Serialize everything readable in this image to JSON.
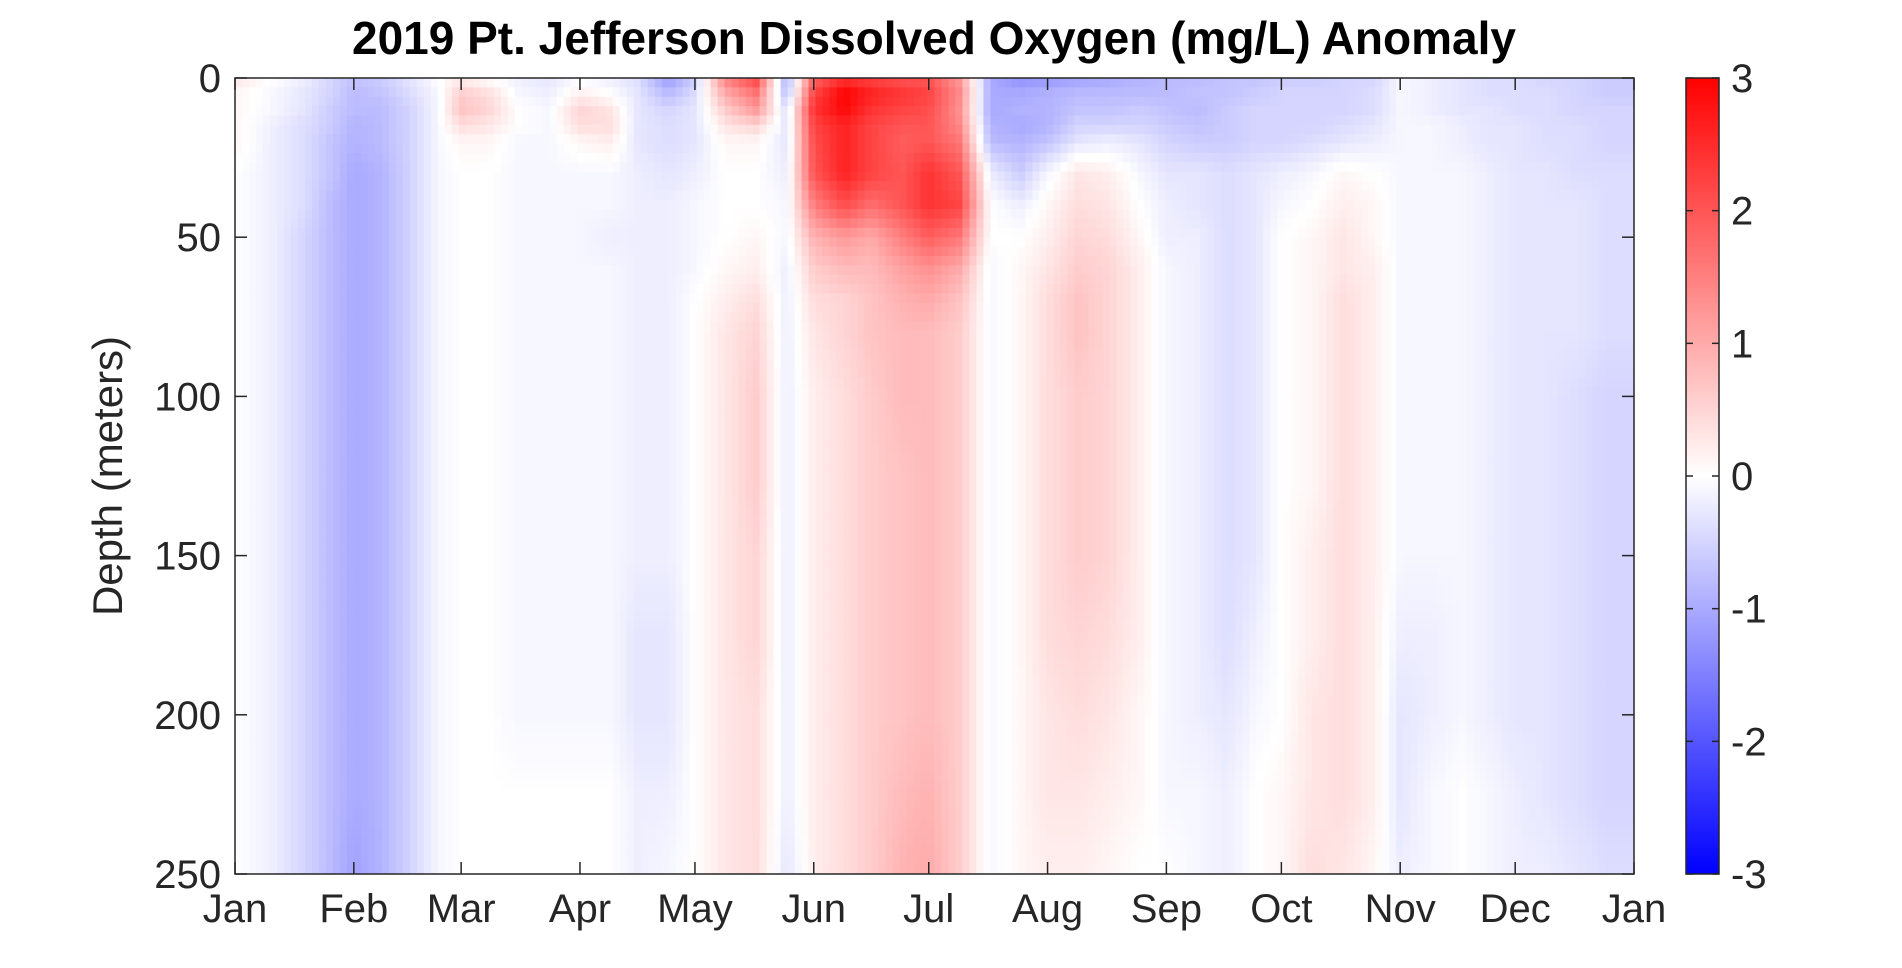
{
  "chart_data": {
    "type": "heatmap",
    "title": "2019 Pt. Jefferson Dissolved Oxygen (mg/L) Anomaly",
    "xlabel": "",
    "ylabel": "Depth (meters)",
    "x_ticks": [
      "Jan",
      "Feb",
      "Mar",
      "Apr",
      "May",
      "Jun",
      "Jul",
      "Aug",
      "Sep",
      "Oct",
      "Nov",
      "Dec",
      "Jan"
    ],
    "x_tick_days": [
      0,
      31,
      59,
      90,
      120,
      151,
      181,
      212,
      243,
      273,
      304,
      334,
      365
    ],
    "xlim": [
      0,
      365
    ],
    "y_ticks": [
      0,
      50,
      100,
      150,
      200,
      250
    ],
    "y_tick_labels": [
      "0",
      "50",
      "100",
      "150",
      "200",
      "250"
    ],
    "ylim": [
      0,
      250
    ],
    "y_reversed": true,
    "colorbar": {
      "ticks": [
        3,
        2,
        1,
        0,
        -1,
        -2,
        -3
      ],
      "tick_labels": [
        "3",
        "2",
        "1",
        "0",
        "-1",
        "-2",
        "-3"
      ],
      "range": [
        -3,
        3
      ],
      "colors": {
        "low": "#0000ff",
        "mid": "#ffffff",
        "high": "#ff0000"
      }
    },
    "time_days": [
      0,
      10,
      18,
      25,
      31,
      38,
      46,
      53,
      59,
      66,
      74,
      82,
      90,
      98,
      105,
      113,
      120,
      128,
      136,
      144,
      151,
      159,
      166,
      174,
      181,
      189,
      197,
      205,
      212,
      220,
      228,
      236,
      243,
      251,
      259,
      266,
      273,
      281,
      289,
      297,
      304,
      312,
      320,
      327,
      334,
      342,
      350,
      358,
      365
    ],
    "depths": [
      0,
      5,
      10,
      15,
      20,
      30,
      40,
      50,
      60,
      70,
      80,
      100,
      125,
      150,
      175,
      200,
      225,
      250
    ],
    "values": [
      [
        0.3,
        0.1,
        0.1,
        0.1,
        0.1,
        0.0,
        0.0,
        0.0,
        0.0,
        0.0,
        0.0,
        0.0,
        0.0,
        0.0,
        0.0,
        0.0,
        0.0,
        0.0
      ],
      [
        0.0,
        -0.1,
        -0.1,
        -0.2,
        -0.2,
        -0.2,
        -0.2,
        -0.2,
        -0.2,
        -0.2,
        -0.2,
        -0.2,
        -0.2,
        -0.2,
        -0.2,
        -0.2,
        -0.2,
        -0.2
      ],
      [
        -0.2,
        -0.3,
        -0.3,
        -0.4,
        -0.4,
        -0.4,
        -0.4,
        -0.5,
        -0.5,
        -0.5,
        -0.5,
        -0.5,
        -0.5,
        -0.5,
        -0.5,
        -0.5,
        -0.5,
        -0.5
      ],
      [
        -0.5,
        -0.5,
        -0.6,
        -0.6,
        -0.7,
        -0.7,
        -0.8,
        -0.8,
        -0.8,
        -0.8,
        -0.8,
        -0.8,
        -0.8,
        -0.8,
        -0.8,
        -0.8,
        -0.8,
        -0.8
      ],
      [
        -0.7,
        -0.8,
        -0.8,
        -0.9,
        -0.9,
        -1.0,
        -1.0,
        -1.0,
        -1.0,
        -1.0,
        -1.0,
        -1.0,
        -1.0,
        -1.0,
        -1.0,
        -1.0,
        -1.0,
        -1.1
      ],
      [
        -0.6,
        -0.7,
        -0.8,
        -0.8,
        -0.8,
        -0.9,
        -0.9,
        -0.9,
        -0.9,
        -0.9,
        -0.9,
        -0.9,
        -0.9,
        -0.9,
        -0.9,
        -0.9,
        -0.9,
        -0.9
      ],
      [
        -0.3,
        -0.4,
        -0.5,
        -0.5,
        -0.5,
        -0.5,
        -0.5,
        -0.5,
        -0.5,
        -0.5,
        -0.5,
        -0.5,
        -0.5,
        -0.5,
        -0.5,
        -0.5,
        -0.5,
        -0.5
      ],
      [
        0.0,
        -0.1,
        -0.1,
        -0.1,
        -0.1,
        -0.1,
        -0.1,
        -0.1,
        -0.1,
        -0.1,
        -0.1,
        -0.1,
        -0.1,
        -0.1,
        -0.1,
        -0.1,
        -0.1,
        -0.1
      ],
      [
        0.2,
        0.6,
        0.7,
        0.4,
        0.1,
        0.0,
        0.0,
        0.0,
        0.0,
        0.0,
        0.0,
        0.0,
        0.0,
        0.0,
        0.0,
        0.0,
        0.0,
        0.0
      ],
      [
        0.0,
        0.4,
        0.5,
        0.3,
        0.1,
        0.0,
        0.0,
        0.0,
        0.0,
        0.0,
        0.0,
        0.0,
        0.0,
        0.0,
        0.0,
        0.0,
        0.0,
        0.0
      ],
      [
        -0.2,
        -0.1,
        0.0,
        0.0,
        -0.1,
        -0.1,
        -0.1,
        -0.1,
        -0.1,
        -0.1,
        -0.1,
        -0.1,
        -0.1,
        -0.1,
        -0.1,
        -0.1,
        0.0,
        0.0
      ],
      [
        -0.3,
        -0.2,
        -0.1,
        -0.1,
        -0.1,
        -0.1,
        -0.1,
        -0.1,
        -0.1,
        -0.1,
        -0.1,
        -0.1,
        -0.1,
        -0.1,
        -0.1,
        -0.1,
        0.0,
        0.0
      ],
      [
        -0.1,
        0.2,
        0.5,
        0.4,
        0.1,
        -0.1,
        -0.1,
        -0.1,
        -0.1,
        -0.1,
        -0.1,
        -0.1,
        -0.1,
        -0.1,
        -0.1,
        -0.1,
        0.0,
        0.0
      ],
      [
        -0.2,
        0.0,
        0.3,
        0.4,
        0.2,
        -0.1,
        -0.1,
        -0.2,
        -0.1,
        -0.1,
        -0.1,
        -0.1,
        -0.1,
        -0.1,
        -0.1,
        -0.1,
        0.0,
        0.0
      ],
      [
        -0.4,
        -0.3,
        -0.3,
        -0.3,
        -0.3,
        -0.2,
        -0.2,
        -0.2,
        -0.2,
        -0.2,
        -0.2,
        -0.2,
        -0.2,
        -0.2,
        -0.3,
        -0.3,
        -0.2,
        -0.2
      ],
      [
        -1.2,
        -0.8,
        -0.5,
        -0.4,
        -0.4,
        -0.3,
        -0.2,
        -0.2,
        -0.2,
        -0.2,
        -0.2,
        -0.2,
        -0.2,
        -0.2,
        -0.3,
        -0.3,
        -0.2,
        -0.1
      ],
      [
        -0.6,
        -0.4,
        -0.3,
        -0.3,
        -0.3,
        -0.2,
        -0.1,
        -0.1,
        -0.1,
        0.0,
        0.0,
        0.0,
        0.0,
        0.0,
        0.0,
        0.0,
        0.0,
        0.0
      ],
      [
        1.5,
        1.0,
        0.6,
        0.3,
        0.1,
        0.0,
        0.0,
        0.0,
        0.1,
        0.2,
        0.3,
        0.3,
        0.3,
        0.3,
        0.3,
        0.3,
        0.3,
        0.3
      ],
      [
        2.2,
        1.6,
        1.2,
        0.5,
        0.1,
        0.0,
        0.0,
        0.1,
        0.2,
        0.4,
        0.5,
        0.6,
        0.6,
        0.5,
        0.5,
        0.4,
        0.4,
        0.4
      ],
      [
        -1.0,
        -0.8,
        -0.4,
        -0.3,
        -0.3,
        -0.2,
        -0.1,
        -0.1,
        -0.2,
        -0.2,
        -0.2,
        -0.2,
        -0.2,
        -0.2,
        -0.2,
        -0.2,
        -0.2,
        -0.3
      ],
      [
        1.8,
        2.2,
        2.4,
        2.2,
        2.1,
        2.0,
        1.5,
        0.9,
        0.6,
        0.4,
        0.3,
        0.2,
        0.2,
        0.2,
        0.2,
        0.2,
        0.2,
        0.2
      ],
      [
        2.4,
        3.0,
        2.9,
        2.6,
        2.6,
        2.6,
        2.1,
        1.2,
        0.8,
        0.5,
        0.5,
        0.4,
        0.4,
        0.4,
        0.4,
        0.4,
        0.4,
        0.4
      ],
      [
        2.2,
        2.6,
        2.4,
        2.2,
        2.2,
        2.2,
        1.7,
        1.0,
        0.8,
        0.7,
        0.7,
        0.6,
        0.6,
        0.6,
        0.6,
        0.6,
        0.6,
        0.6
      ],
      [
        2.0,
        2.4,
        2.2,
        2.0,
        1.9,
        2.0,
        2.0,
        1.5,
        1.1,
        0.9,
        0.8,
        0.8,
        0.7,
        0.7,
        0.7,
        0.7,
        0.8,
        0.9
      ],
      [
        2.0,
        2.2,
        2.1,
        2.0,
        2.0,
        2.4,
        2.4,
        1.9,
        1.3,
        1.0,
        0.8,
        0.8,
        0.8,
        0.8,
        0.8,
        0.8,
        0.9,
        1.0
      ],
      [
        1.2,
        1.4,
        1.3,
        1.4,
        1.6,
        2.0,
        2.2,
        1.6,
        1.0,
        0.7,
        0.6,
        0.6,
        0.6,
        0.6,
        0.6,
        0.6,
        0.6,
        0.6
      ],
      [
        -1.0,
        -1.0,
        -1.0,
        -0.9,
        -0.8,
        -0.2,
        0.0,
        0.0,
        -0.1,
        -0.1,
        -0.1,
        -0.1,
        -0.1,
        -0.1,
        -0.1,
        -0.1,
        -0.1,
        -0.1
      ],
      [
        -1.3,
        -1.0,
        -0.9,
        -1.0,
        -0.9,
        -0.6,
        -0.2,
        0.0,
        0.1,
        0.1,
        0.1,
        0.1,
        0.1,
        0.1,
        0.1,
        0.1,
        0.1,
        0.1
      ],
      [
        -1.2,
        -0.9,
        -0.9,
        -0.9,
        -0.7,
        -0.1,
        0.1,
        0.2,
        0.3,
        0.4,
        0.4,
        0.4,
        0.4,
        0.4,
        0.4,
        0.3,
        0.3,
        0.2
      ],
      [
        -1.1,
        -0.8,
        -0.7,
        -0.5,
        -0.3,
        0.3,
        0.4,
        0.5,
        0.6,
        0.7,
        0.7,
        0.6,
        0.6,
        0.6,
        0.5,
        0.4,
        0.3,
        0.2
      ],
      [
        -1.0,
        -0.8,
        -0.7,
        -0.5,
        -0.2,
        0.2,
        0.3,
        0.4,
        0.5,
        0.5,
        0.5,
        0.5,
        0.5,
        0.5,
        0.4,
        0.3,
        0.2,
        0.1
      ],
      [
        -0.9,
        -0.8,
        -0.6,
        -0.5,
        -0.3,
        -0.1,
        0.0,
        0.1,
        0.2,
        0.2,
        0.2,
        0.2,
        0.2,
        0.2,
        0.2,
        0.1,
        0.1,
        0.0
      ],
      [
        -0.8,
        -0.8,
        -0.7,
        -0.6,
        -0.5,
        -0.3,
        -0.2,
        -0.2,
        -0.1,
        -0.1,
        -0.1,
        -0.1,
        -0.1,
        -0.1,
        -0.1,
        -0.1,
        -0.1,
        0.0
      ],
      [
        -0.8,
        -0.7,
        -0.8,
        -0.7,
        -0.6,
        -0.3,
        -0.3,
        -0.2,
        -0.2,
        -0.2,
        -0.2,
        -0.2,
        -0.2,
        -0.2,
        -0.2,
        -0.2,
        -0.1,
        -0.1
      ],
      [
        -0.7,
        -0.7,
        -0.6,
        -0.6,
        -0.6,
        -0.4,
        -0.4,
        -0.4,
        -0.4,
        -0.4,
        -0.4,
        -0.4,
        -0.4,
        -0.4,
        -0.4,
        -0.3,
        -0.2,
        -0.2
      ],
      [
        -0.7,
        -0.6,
        -0.5,
        -0.5,
        -0.5,
        -0.3,
        -0.3,
        -0.3,
        -0.3,
        -0.3,
        -0.3,
        -0.3,
        -0.3,
        -0.3,
        -0.2,
        -0.1,
        0.0,
        0.0
      ],
      [
        -0.6,
        -0.5,
        -0.5,
        -0.5,
        -0.5,
        -0.2,
        -0.1,
        0.0,
        0.0,
        0.0,
        0.0,
        0.0,
        0.0,
        0.0,
        0.0,
        0.0,
        0.1,
        0.1
      ],
      [
        -0.6,
        -0.5,
        -0.5,
        -0.5,
        -0.4,
        -0.1,
        0.0,
        0.1,
        0.1,
        0.1,
        0.1,
        0.1,
        0.1,
        0.2,
        0.2,
        0.3,
        0.3,
        0.4
      ],
      [
        -0.5,
        -0.5,
        -0.5,
        -0.4,
        -0.3,
        0.1,
        0.2,
        0.3,
        0.3,
        0.4,
        0.4,
        0.4,
        0.4,
        0.4,
        0.4,
        0.4,
        0.4,
        0.3
      ],
      [
        -0.5,
        -0.4,
        -0.4,
        -0.3,
        -0.2,
        0.0,
        0.1,
        0.1,
        0.2,
        0.2,
        0.2,
        0.2,
        0.2,
        0.2,
        0.2,
        0.2,
        0.2,
        0.1
      ],
      [
        -0.1,
        -0.1,
        -0.1,
        -0.1,
        -0.1,
        -0.1,
        -0.1,
        -0.1,
        -0.1,
        -0.1,
        -0.1,
        -0.1,
        -0.1,
        -0.1,
        -0.2,
        -0.3,
        -0.3,
        -0.2
      ],
      [
        -0.2,
        -0.2,
        -0.2,
        -0.1,
        -0.1,
        -0.1,
        -0.1,
        -0.1,
        -0.1,
        -0.1,
        -0.1,
        -0.1,
        -0.1,
        -0.1,
        -0.2,
        -0.2,
        -0.1,
        -0.1
      ],
      [
        -0.3,
        -0.3,
        -0.3,
        -0.2,
        -0.2,
        -0.1,
        -0.1,
        -0.1,
        -0.1,
        -0.1,
        -0.1,
        -0.1,
        -0.1,
        -0.1,
        -0.1,
        -0.1,
        0.0,
        0.0
      ],
      [
        -0.4,
        -0.4,
        -0.3,
        -0.3,
        -0.3,
        -0.2,
        -0.2,
        -0.2,
        -0.2,
        -0.2,
        -0.2,
        -0.2,
        -0.2,
        -0.2,
        -0.2,
        -0.2,
        -0.1,
        -0.1
      ],
      [
        -0.4,
        -0.4,
        -0.4,
        -0.3,
        -0.3,
        -0.3,
        -0.3,
        -0.3,
        -0.3,
        -0.3,
        -0.3,
        -0.3,
        -0.3,
        -0.3,
        -0.3,
        -0.3,
        -0.2,
        -0.2
      ],
      [
        -0.5,
        -0.4,
        -0.4,
        -0.4,
        -0.4,
        -0.3,
        -0.3,
        -0.3,
        -0.3,
        -0.3,
        -0.3,
        -0.3,
        -0.3,
        -0.3,
        -0.3,
        -0.3,
        -0.3,
        -0.2
      ],
      [
        -0.5,
        -0.5,
        -0.5,
        -0.4,
        -0.4,
        -0.4,
        -0.3,
        -0.3,
        -0.3,
        -0.3,
        -0.3,
        -0.4,
        -0.4,
        -0.4,
        -0.4,
        -0.4,
        -0.4,
        -0.3
      ],
      [
        -0.6,
        -0.6,
        -0.5,
        -0.5,
        -0.5,
        -0.4,
        -0.4,
        -0.4,
        -0.4,
        -0.4,
        -0.4,
        -0.5,
        -0.5,
        -0.5,
        -0.5,
        -0.5,
        -0.5,
        -0.4
      ],
      [
        -0.6,
        -0.6,
        -0.5,
        -0.5,
        -0.5,
        -0.4,
        -0.4,
        -0.4,
        -0.4,
        -0.4,
        -0.4,
        -0.5,
        -0.5,
        -0.5,
        -0.5,
        -0.5,
        -0.5,
        -0.4
      ]
    ]
  }
}
